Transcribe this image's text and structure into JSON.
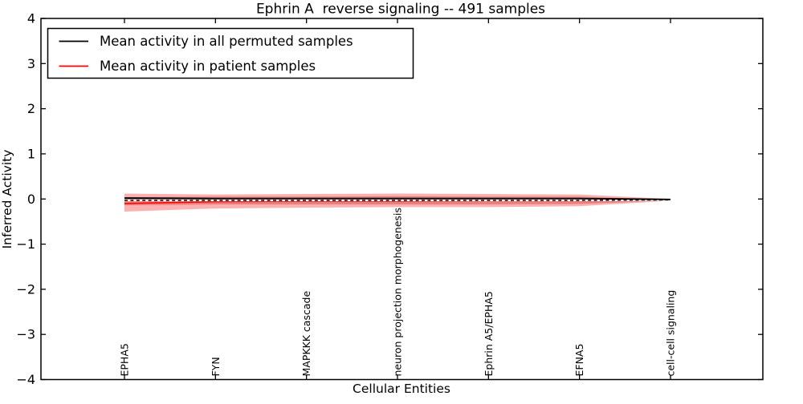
{
  "figure": {
    "title": "Ephrin A  reverse signaling -- 491 samples",
    "xlabel": "Cellular Entities",
    "ylabel": "Inferred Activity"
  },
  "legend": {
    "items": [
      {
        "label": "Mean activity in all permuted samples",
        "color": "#000000"
      },
      {
        "label": "Mean activity in patient samples",
        "color": "#ff0000"
      }
    ]
  },
  "chart_data": {
    "type": "line",
    "title": "Ephrin A  reverse signaling -- 491 samples",
    "xlabel": "Cellular Entities",
    "ylabel": "Inferred Activity",
    "ylim": [
      -4,
      4
    ],
    "yticks": [
      -4,
      -3,
      -2,
      -1,
      0,
      1,
      2,
      3,
      4
    ],
    "grid": false,
    "legend_position": "upper left",
    "categories": [
      "EPHA5",
      "FYN",
      "MAPKKK cascade",
      "neuron projection morphogenesis",
      "Ephrin A5/EPHA5",
      "EFNA5",
      "cell-cell signaling"
    ],
    "series": [
      {
        "name": "Mean activity in all permuted samples",
        "color": "#000000",
        "style": "solid",
        "width": 1.9,
        "values": [
          0.02,
          0.01,
          0.01,
          0.01,
          0.01,
          0.01,
          -0.01
        ]
      },
      {
        "name": "Zero reference (dashed)",
        "color": "#000000",
        "style": "dashed",
        "width": 1.5,
        "values": [
          -0.03,
          -0.03,
          -0.03,
          -0.03,
          -0.03,
          -0.03,
          -0.02
        ]
      },
      {
        "name": "Mean activity in patient samples",
        "color": "#ff0000",
        "style": "solid",
        "width": 1.6,
        "values": [
          -0.1,
          -0.06,
          -0.05,
          -0.05,
          -0.04,
          -0.04,
          -0.02
        ]
      }
    ],
    "bands": [
      {
        "name": "patient-spread-outer",
        "color": "#f55151",
        "opacity": 0.45,
        "upper": [
          0.12,
          0.1,
          0.11,
          0.12,
          0.11,
          0.1,
          0.0
        ],
        "lower": [
          -0.28,
          -0.21,
          -0.19,
          -0.18,
          -0.18,
          -0.16,
          -0.04
        ]
      },
      {
        "name": "patient-spread-inner",
        "color": "#e04040",
        "opacity": 0.45,
        "upper": [
          0.04,
          0.05,
          0.05,
          0.06,
          0.05,
          0.05,
          -0.01
        ],
        "lower": [
          -0.14,
          -0.12,
          -0.12,
          -0.12,
          -0.12,
          -0.11,
          -0.03
        ]
      }
    ]
  }
}
